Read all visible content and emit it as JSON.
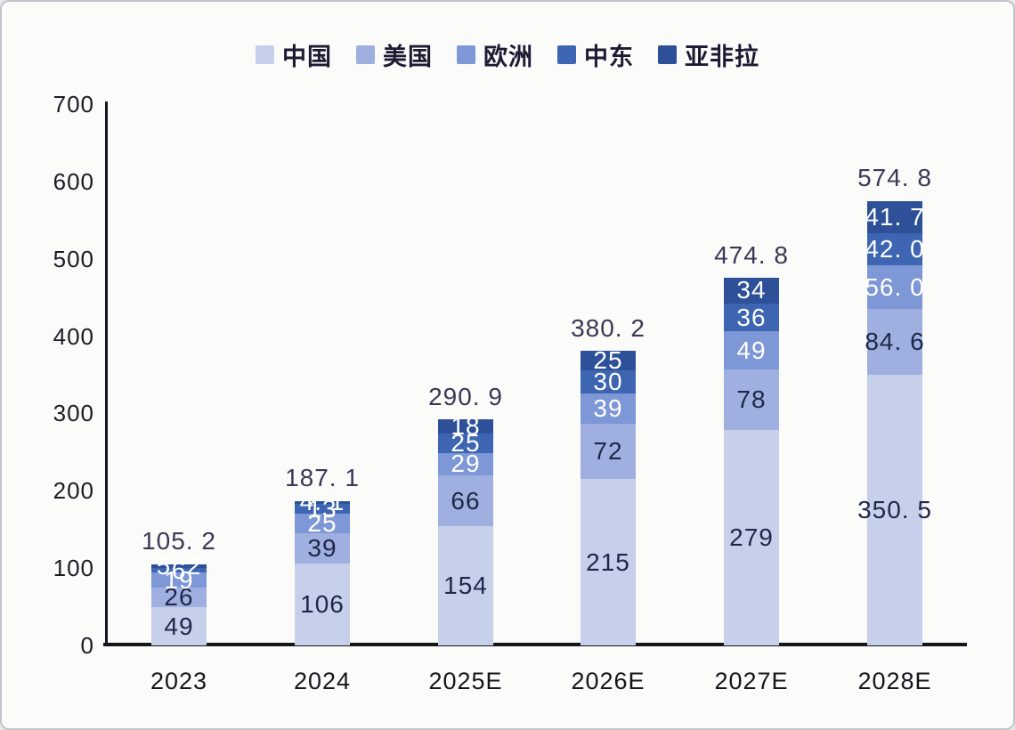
{
  "page": {
    "background": "#fbfbf9",
    "border_color": "#c2c5cb"
  },
  "legend": {
    "position": "top",
    "items": [
      {
        "label": "中国",
        "color": "#c7d0ea"
      },
      {
        "label": "美国",
        "color": "#9fb0e0"
      },
      {
        "label": "欧洲",
        "color": "#7d97d7"
      },
      {
        "label": "中东",
        "color": "#3e65b2"
      },
      {
        "label": "亚非拉",
        "color": "#2d5098"
      }
    ]
  },
  "chart_data": {
    "type": "bar",
    "stacked": true,
    "title": "",
    "xlabel": "",
    "ylabel": "",
    "grid": false,
    "legend_position": "top",
    "categories": [
      "2023",
      "2024",
      "2025E",
      "2026E",
      "2027E",
      "2028E"
    ],
    "series": [
      {
        "name": "中国",
        "color": "#c7d0ea",
        "label_color": "#1e2749",
        "values": [
          49,
          106,
          154,
          215,
          279,
          350.5
        ],
        "labels": [
          "49",
          "106",
          "154",
          "215",
          "279",
          "350. 5"
        ]
      },
      {
        "name": "美国",
        "color": "#9fb0e0",
        "label_color": "#1e2749",
        "values": [
          26,
          39,
          66,
          72,
          78,
          84.6
        ],
        "labels": [
          "26",
          "39",
          "66",
          "72",
          "78",
          "84. 6"
        ]
      },
      {
        "name": "欧洲",
        "color": "#7d97d7",
        "label_color": "#ffffff",
        "values": [
          19,
          25,
          29,
          39,
          49,
          56.0
        ],
        "labels": [
          "19",
          "25",
          "29",
          "39",
          "49",
          "56. 0"
        ]
      },
      {
        "name": "中东",
        "color": "#3e65b2",
        "label_color": "#ffffff",
        "values": [
          6,
          13,
          25,
          30,
          36,
          42.0
        ],
        "labels": [
          "6",
          "13",
          "25",
          "30",
          "36",
          "42. 0"
        ]
      },
      {
        "name": "亚非拉",
        "color": "#2d5098",
        "label_color": "#ffffff",
        "values": [
          5.2,
          4.1,
          18,
          25,
          34,
          41.7
        ],
        "labels": [
          "5. 2",
          "4. 1",
          "18",
          "25",
          "34",
          "41. 7"
        ]
      }
    ],
    "totals": {
      "values": [
        105.2,
        187.1,
        290.9,
        380.2,
        474.8,
        574.8
      ],
      "labels": [
        "105. 2",
        "187. 1",
        "290. 9",
        "380. 2",
        "474. 8",
        "574. 8"
      ]
    },
    "y_axis": {
      "min": 0,
      "max": 700,
      "step": 100,
      "ticks": [
        "0",
        "100",
        "200",
        "300",
        "400",
        "500",
        "600",
        "700"
      ]
    }
  }
}
